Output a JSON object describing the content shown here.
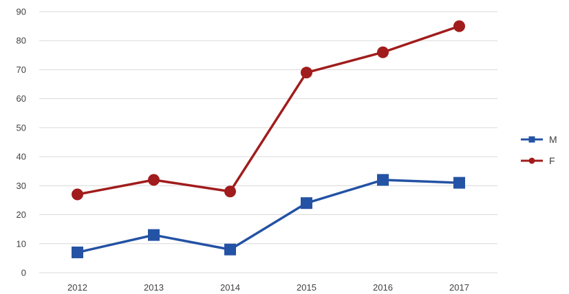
{
  "chart_data": {
    "type": "line",
    "title": "",
    "xlabel": "",
    "ylabel": "",
    "categories": [
      "2012",
      "2013",
      "2014",
      "2015",
      "2016",
      "2017"
    ],
    "ylim": [
      0,
      90
    ],
    "yticks": [
      0,
      10,
      20,
      30,
      40,
      50,
      60,
      70,
      80,
      90
    ],
    "grid": true,
    "legend_position": "right",
    "series": [
      {
        "name": "M",
        "values": [
          7,
          13,
          8,
          24,
          32,
          31
        ],
        "color": "#2452a4",
        "marker": "square"
      },
      {
        "name": "F",
        "values": [
          27,
          32,
          28,
          69,
          76,
          85
        ],
        "color": "#a11c1c",
        "marker": "circle"
      }
    ]
  }
}
